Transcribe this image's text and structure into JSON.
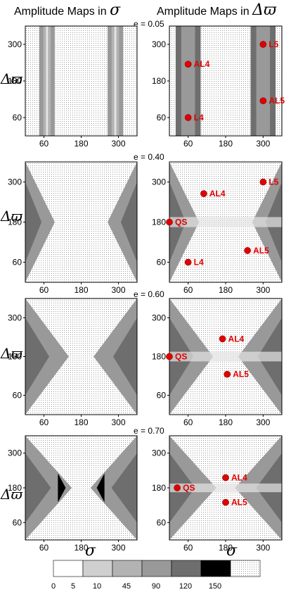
{
  "headers": {
    "left_title": "Amplitude Maps in",
    "left_symbol": "σ",
    "right_title": "Amplitude Maps in",
    "right_symbol": "Δϖ"
  },
  "axes": {
    "y_label": "Δϖ",
    "x_label": "σ",
    "x_ticks": [
      60,
      180,
      300
    ],
    "y_ticks": [
      60,
      180,
      300
    ]
  },
  "colorbar": {
    "ticks": [
      "0",
      "5",
      "10",
      "45",
      "90",
      "120",
      "150"
    ],
    "colors": [
      "#ffffff",
      "#cfcfcf",
      "#b3b3b3",
      "#999999",
      "#6e6e6e",
      "#000000",
      "#e8e8e8"
    ]
  },
  "chart_data": [
    {
      "type": "heatmap",
      "eccentricity": "e = 0.05",
      "map": "sigma",
      "x_range": [
        0,
        360
      ],
      "y_range": [
        0,
        360
      ],
      "markers": []
    },
    {
      "type": "heatmap",
      "eccentricity": "",
      "map": "varpi",
      "x_range": [
        0,
        360
      ],
      "y_range": [
        0,
        360
      ],
      "markers": [
        {
          "label": "L5",
          "x": 300,
          "y": 300
        },
        {
          "label": "AL4",
          "x": 60,
          "y": 235
        },
        {
          "label": "AL5",
          "x": 300,
          "y": 115
        },
        {
          "label": "L4",
          "x": 60,
          "y": 60
        }
      ]
    },
    {
      "type": "heatmap",
      "eccentricity": "e = 0.40",
      "map": "sigma",
      "x_range": [
        0,
        360
      ],
      "y_range": [
        0,
        360
      ],
      "markers": []
    },
    {
      "type": "heatmap",
      "eccentricity": "",
      "map": "varpi",
      "x_range": [
        0,
        360
      ],
      "y_range": [
        0,
        360
      ],
      "markers": [
        {
          "label": "L5",
          "x": 300,
          "y": 300
        },
        {
          "label": "AL4",
          "x": 110,
          "y": 265
        },
        {
          "label": "QS",
          "x": 0,
          "y": 180
        },
        {
          "label": "AL5",
          "x": 250,
          "y": 95
        },
        {
          "label": "L4",
          "x": 60,
          "y": 60
        }
      ]
    },
    {
      "type": "heatmap",
      "eccentricity": "e = 0.60",
      "map": "sigma",
      "x_range": [
        0,
        360
      ],
      "y_range": [
        0,
        360
      ],
      "markers": []
    },
    {
      "type": "heatmap",
      "eccentricity": "",
      "map": "varpi",
      "x_range": [
        0,
        360
      ],
      "y_range": [
        0,
        360
      ],
      "markers": [
        {
          "label": "AL4",
          "x": 170,
          "y": 235
        },
        {
          "label": "QS",
          "x": 0,
          "y": 180
        },
        {
          "label": "AL5",
          "x": 185,
          "y": 125
        }
      ]
    },
    {
      "type": "heatmap",
      "eccentricity": "e = 0.70",
      "map": "sigma",
      "x_range": [
        0,
        360
      ],
      "y_range": [
        0,
        360
      ],
      "markers": []
    },
    {
      "type": "heatmap",
      "eccentricity": "",
      "map": "varpi",
      "x_range": [
        0,
        360
      ],
      "y_range": [
        0,
        360
      ],
      "markers": [
        {
          "label": "AL4",
          "x": 180,
          "y": 215
        },
        {
          "label": "QS",
          "x": 25,
          "y": 180
        },
        {
          "label": "AL5",
          "x": 180,
          "y": 130
        }
      ]
    }
  ]
}
